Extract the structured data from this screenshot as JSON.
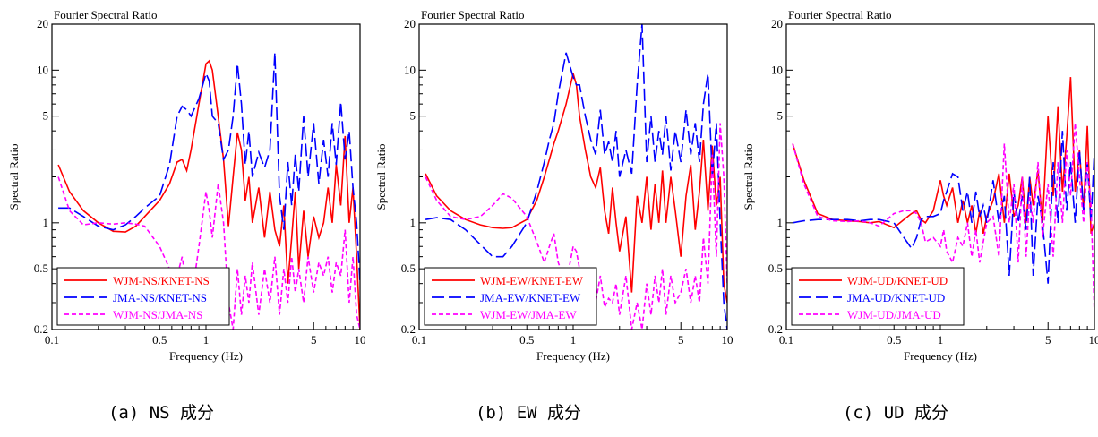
{
  "chart_data": [
    {
      "type": "line",
      "title": "Fourier Spectral Ratio",
      "xlabel": "Frequency (Hz)",
      "ylabel": "Spectral Ratio",
      "xscale": "log",
      "yscale": "log",
      "xlim": [
        0.1,
        10
      ],
      "ylim": [
        0.2,
        20
      ],
      "xticks": [
        "0.1",
        "0.5",
        "1",
        "5",
        "10"
      ],
      "yticks": [
        "0.2",
        "0.5",
        "1",
        "5",
        "10",
        "20"
      ],
      "legend": "bottom-left",
      "caption": "(a) NS 成分",
      "series": [
        {
          "name": "WJM-NS/KNET-NS",
          "color": "#ff0000",
          "dash": "solid",
          "x": [
            0.11,
            0.13,
            0.16,
            0.2,
            0.25,
            0.3,
            0.35,
            0.4,
            0.5,
            0.58,
            0.65,
            0.7,
            0.75,
            0.8,
            0.9,
            1.0,
            1.05,
            1.1,
            1.2,
            1.3,
            1.4,
            1.5,
            1.6,
            1.7,
            1.8,
            1.9,
            2.0,
            2.2,
            2.4,
            2.6,
            2.8,
            3.0,
            3.2,
            3.4,
            3.6,
            3.8,
            4.0,
            4.3,
            4.6,
            5.0,
            5.4,
            5.8,
            6.2,
            6.6,
            7.0,
            7.5,
            8.0,
            8.5,
            9.0,
            9.5,
            10.0
          ],
          "y": [
            2.4,
            1.6,
            1.2,
            1.0,
            0.88,
            0.87,
            0.95,
            1.1,
            1.4,
            1.8,
            2.5,
            2.6,
            2.2,
            3.0,
            6.0,
            11.0,
            11.5,
            10.0,
            5.0,
            2.6,
            0.95,
            2.0,
            3.9,
            3.0,
            1.4,
            2.0,
            1.0,
            1.7,
            0.8,
            1.6,
            0.9,
            0.7,
            1.3,
            0.4,
            0.8,
            1.6,
            0.5,
            1.2,
            0.6,
            1.1,
            0.8,
            1.0,
            1.7,
            1.0,
            2.4,
            1.3,
            3.7,
            1.0,
            1.7,
            0.6,
            0.2
          ]
        },
        {
          "name": "JMA-NS/KNET-NS",
          "color": "#0000ff",
          "dash": "long",
          "x": [
            0.11,
            0.13,
            0.16,
            0.2,
            0.25,
            0.3,
            0.35,
            0.4,
            0.5,
            0.58,
            0.65,
            0.7,
            0.75,
            0.8,
            0.9,
            1.0,
            1.05,
            1.1,
            1.2,
            1.3,
            1.4,
            1.5,
            1.6,
            1.7,
            1.8,
            1.9,
            2.0,
            2.2,
            2.4,
            2.6,
            2.8,
            3.0,
            3.2,
            3.4,
            3.6,
            3.8,
            4.0,
            4.3,
            4.6,
            5.0,
            5.4,
            5.8,
            6.2,
            6.6,
            7.0,
            7.5,
            8.0,
            8.5,
            9.0,
            9.5,
            10.0
          ],
          "y": [
            1.25,
            1.25,
            1.1,
            0.95,
            0.9,
            0.97,
            1.1,
            1.25,
            1.5,
            2.4,
            5.0,
            5.8,
            5.5,
            5.0,
            6.5,
            9.5,
            8.5,
            5.0,
            4.5,
            2.6,
            3.0,
            5.0,
            11.0,
            6.0,
            2.4,
            4.0,
            2.0,
            2.9,
            2.3,
            3.0,
            13.0,
            1.5,
            0.9,
            2.5,
            1.3,
            2.8,
            1.6,
            5.0,
            2.0,
            4.5,
            1.8,
            3.5,
            2.0,
            4.5,
            2.4,
            6.2,
            2.6,
            4.0,
            1.7,
            1.0,
            0.4
          ]
        },
        {
          "name": "WJM-NS/JMA-NS",
          "color": "#ff00ff",
          "dash": "short",
          "x": [
            0.11,
            0.13,
            0.16,
            0.2,
            0.25,
            0.3,
            0.35,
            0.4,
            0.5,
            0.58,
            0.65,
            0.7,
            0.75,
            0.8,
            0.9,
            1.0,
            1.05,
            1.1,
            1.2,
            1.3,
            1.4,
            1.5,
            1.6,
            1.7,
            1.8,
            1.9,
            2.0,
            2.2,
            2.4,
            2.6,
            2.8,
            3.0,
            3.2,
            3.4,
            3.6,
            3.8,
            4.0,
            4.3,
            4.6,
            5.0,
            5.4,
            5.8,
            6.2,
            6.6,
            7.0,
            7.5,
            8.0,
            8.5,
            9.0,
            9.5,
            10.0
          ],
          "y": [
            2.0,
            1.2,
            0.97,
            1.0,
            0.98,
            1.0,
            0.98,
            0.95,
            0.7,
            0.5,
            0.45,
            0.6,
            0.38,
            0.3,
            0.7,
            1.6,
            1.2,
            0.8,
            1.8,
            1.0,
            0.3,
            0.2,
            0.5,
            0.25,
            0.45,
            0.3,
            0.55,
            0.25,
            0.5,
            0.3,
            0.6,
            0.25,
            0.5,
            0.3,
            0.6,
            0.35,
            0.5,
            0.3,
            0.6,
            0.35,
            0.55,
            0.45,
            0.6,
            0.35,
            0.55,
            0.45,
            0.9,
            0.3,
            0.6,
            0.25,
            0.2
          ]
        }
      ]
    },
    {
      "type": "line",
      "title": "Fourier Spectral Ratio",
      "xlabel": "Frequency (Hz)",
      "ylabel": "Spectral Ratio",
      "xscale": "log",
      "yscale": "log",
      "xlim": [
        0.1,
        10
      ],
      "ylim": [
        0.2,
        20
      ],
      "xticks": [
        "0.1",
        "0.5",
        "1",
        "5",
        "10"
      ],
      "yticks": [
        "0.2",
        "0.5",
        "1",
        "5",
        "10",
        "20"
      ],
      "legend": "bottom-left",
      "caption": "(b) EW 成分",
      "series": [
        {
          "name": "WJM-EW/KNET-EW",
          "color": "#ff0000",
          "dash": "solid",
          "x": [
            0.11,
            0.13,
            0.16,
            0.2,
            0.25,
            0.3,
            0.35,
            0.4,
            0.5,
            0.58,
            0.65,
            0.7,
            0.75,
            0.8,
            0.9,
            1.0,
            1.05,
            1.1,
            1.2,
            1.3,
            1.4,
            1.5,
            1.6,
            1.7,
            1.8,
            1.9,
            2.0,
            2.2,
            2.4,
            2.6,
            2.8,
            3.0,
            3.2,
            3.4,
            3.6,
            3.8,
            4.0,
            4.3,
            4.6,
            5.0,
            5.4,
            5.8,
            6.2,
            6.6,
            7.0,
            7.5,
            8.0,
            8.5,
            9.0,
            9.5,
            10.0
          ],
          "y": [
            2.1,
            1.5,
            1.2,
            1.05,
            0.97,
            0.93,
            0.92,
            0.93,
            1.05,
            1.4,
            2.0,
            2.6,
            3.3,
            4.0,
            6.0,
            9.5,
            8.0,
            5.0,
            3.0,
            2.0,
            1.7,
            2.3,
            1.2,
            0.85,
            1.7,
            1.0,
            0.65,
            1.1,
            0.35,
            1.5,
            1.0,
            2.0,
            0.9,
            1.8,
            1.0,
            2.2,
            1.0,
            2.0,
            1.2,
            0.6,
            1.5,
            2.4,
            0.9,
            1.6,
            3.5,
            1.2,
            3.2,
            1.3,
            2.0,
            0.4,
            0.3
          ]
        },
        {
          "name": "JMA-EW/KNET-EW",
          "color": "#0000ff",
          "dash": "long",
          "x": [
            0.11,
            0.13,
            0.16,
            0.2,
            0.25,
            0.3,
            0.35,
            0.4,
            0.5,
            0.58,
            0.65,
            0.7,
            0.75,
            0.8,
            0.9,
            1.0,
            1.05,
            1.1,
            1.2,
            1.3,
            1.4,
            1.5,
            1.6,
            1.7,
            1.8,
            1.9,
            2.0,
            2.2,
            2.4,
            2.6,
            2.8,
            3.0,
            3.2,
            3.4,
            3.6,
            3.8,
            4.0,
            4.3,
            4.6,
            5.0,
            5.4,
            5.8,
            6.2,
            6.6,
            7.0,
            7.5,
            8.0,
            8.5,
            9.0,
            9.5,
            10.0
          ],
          "y": [
            1.05,
            1.08,
            1.05,
            0.9,
            0.72,
            0.6,
            0.6,
            0.7,
            1.0,
            1.6,
            2.5,
            3.5,
            4.5,
            7.0,
            13.0,
            9.0,
            8.0,
            8.0,
            5.0,
            3.5,
            2.8,
            5.5,
            2.8,
            3.4,
            2.5,
            4.0,
            2.0,
            3.0,
            2.1,
            8.0,
            20.0,
            2.5,
            5.0,
            2.5,
            4.0,
            2.8,
            5.0,
            2.2,
            4.0,
            2.5,
            5.5,
            2.8,
            4.5,
            2.5,
            6.0,
            9.5,
            2.0,
            4.5,
            1.0,
            0.3,
            0.2
          ]
        },
        {
          "name": "WJM-EW/JMA-EW",
          "color": "#ff00ff",
          "dash": "short",
          "x": [
            0.11,
            0.13,
            0.16,
            0.2,
            0.25,
            0.3,
            0.35,
            0.4,
            0.5,
            0.58,
            0.65,
            0.7,
            0.75,
            0.8,
            0.9,
            1.0,
            1.05,
            1.1,
            1.2,
            1.3,
            1.4,
            1.5,
            1.6,
            1.7,
            1.8,
            1.9,
            2.0,
            2.2,
            2.4,
            2.6,
            2.8,
            3.0,
            3.2,
            3.4,
            3.6,
            3.8,
            4.0,
            4.3,
            4.6,
            5.0,
            5.4,
            5.8,
            6.2,
            6.6,
            7.0,
            7.5,
            8.0,
            8.5,
            9.0,
            9.5,
            10.0
          ],
          "y": [
            2.0,
            1.4,
            1.1,
            1.05,
            1.1,
            1.3,
            1.55,
            1.45,
            1.1,
            0.75,
            0.55,
            0.7,
            0.85,
            0.55,
            0.4,
            0.7,
            0.65,
            0.5,
            0.3,
            0.28,
            0.3,
            0.45,
            0.28,
            0.32,
            0.3,
            0.4,
            0.25,
            0.45,
            0.2,
            0.3,
            0.2,
            0.4,
            0.25,
            0.45,
            0.3,
            0.5,
            0.25,
            0.45,
            0.3,
            0.35,
            0.5,
            0.3,
            0.45,
            0.3,
            0.8,
            0.4,
            2.8,
            0.6,
            4.5,
            2.0,
            0.4
          ]
        }
      ]
    },
    {
      "type": "line",
      "title": "Fourier Spectral Ratio",
      "xlabel": "Frequency (Hz)",
      "ylabel": "Spectral Ratio",
      "xscale": "log",
      "yscale": "log",
      "xlim": [
        0.1,
        10
      ],
      "ylim": [
        0.2,
        20
      ],
      "xticks": [
        "0.1",
        "0.5",
        "1",
        "5",
        "10"
      ],
      "yticks": [
        "0.2",
        "0.5",
        "1",
        "5",
        "10",
        "20"
      ],
      "legend": "bottom-left",
      "caption": "(c) UD 成分",
      "series": [
        {
          "name": "WJM-UD/KNET-UD",
          "color": "#ff0000",
          "dash": "solid",
          "x": [
            0.11,
            0.13,
            0.16,
            0.2,
            0.25,
            0.3,
            0.35,
            0.4,
            0.5,
            0.58,
            0.65,
            0.7,
            0.75,
            0.8,
            0.9,
            1.0,
            1.05,
            1.1,
            1.2,
            1.3,
            1.4,
            1.5,
            1.6,
            1.7,
            1.8,
            1.9,
            2.0,
            2.2,
            2.4,
            2.6,
            2.8,
            3.0,
            3.2,
            3.4,
            3.6,
            3.8,
            4.0,
            4.3,
            4.6,
            5.0,
            5.4,
            5.8,
            6.2,
            6.6,
            7.0,
            7.5,
            8.0,
            8.5,
            9.0,
            9.5,
            10.0
          ],
          "y": [
            3.3,
            1.9,
            1.15,
            1.05,
            1.03,
            1.02,
            1.0,
            1.02,
            0.93,
            1.05,
            1.15,
            1.2,
            1.05,
            1.0,
            1.2,
            1.9,
            1.5,
            1.3,
            1.7,
            1.0,
            1.4,
            1.0,
            1.3,
            0.85,
            1.2,
            0.85,
            1.1,
            1.4,
            2.1,
            1.0,
            2.1,
            1.1,
            1.3,
            2.0,
            1.0,
            2.0,
            1.3,
            2.2,
            1.0,
            5.0,
            1.5,
            5.8,
            1.6,
            3.6,
            9.0,
            1.6,
            3.0,
            1.2,
            4.3,
            0.85,
            1.0
          ]
        },
        {
          "name": "JMA-UD/KNET-UD",
          "color": "#0000ff",
          "dash": "long",
          "x": [
            0.11,
            0.13,
            0.16,
            0.2,
            0.25,
            0.3,
            0.35,
            0.4,
            0.5,
            0.58,
            0.65,
            0.7,
            0.75,
            0.8,
            0.9,
            1.0,
            1.05,
            1.1,
            1.2,
            1.3,
            1.4,
            1.5,
            1.6,
            1.7,
            1.8,
            1.9,
            2.0,
            2.2,
            2.4,
            2.6,
            2.8,
            3.0,
            3.2,
            3.4,
            3.6,
            3.8,
            4.0,
            4.3,
            4.6,
            5.0,
            5.4,
            5.8,
            6.2,
            6.6,
            7.0,
            7.5,
            8.0,
            8.5,
            9.0,
            9.5,
            10.0
          ],
          "y": [
            1.0,
            1.03,
            1.05,
            1.05,
            1.05,
            1.03,
            1.05,
            1.05,
            1.0,
            0.8,
            0.68,
            0.8,
            1.05,
            1.1,
            1.1,
            1.15,
            1.4,
            1.6,
            2.1,
            2.0,
            1.2,
            1.6,
            1.0,
            1.6,
            1.1,
            1.3,
            1.0,
            1.9,
            1.0,
            1.5,
            0.45,
            1.6,
            1.0,
            1.5,
            0.9,
            2.0,
            0.45,
            1.5,
            1.0,
            0.4,
            2.5,
            1.0,
            4.0,
            1.2,
            2.5,
            1.0,
            3.0,
            1.2,
            2.5,
            1.0,
            3.0
          ]
        },
        {
          "name": "WJM-UD/JMA-UD",
          "color": "#ff00ff",
          "dash": "short",
          "x": [
            0.11,
            0.13,
            0.16,
            0.2,
            0.25,
            0.3,
            0.35,
            0.4,
            0.5,
            0.58,
            0.65,
            0.7,
            0.75,
            0.8,
            0.9,
            1.0,
            1.05,
            1.1,
            1.2,
            1.3,
            1.4,
            1.5,
            1.6,
            1.7,
            1.8,
            1.9,
            2.0,
            2.2,
            2.4,
            2.6,
            2.8,
            3.0,
            3.2,
            3.4,
            3.6,
            3.8,
            4.0,
            4.3,
            4.6,
            5.0,
            5.4,
            5.8,
            6.2,
            6.6,
            7.0,
            7.5,
            8.0,
            8.5,
            9.0,
            9.5,
            10.0
          ],
          "y": [
            3.3,
            1.8,
            1.1,
            1.03,
            1.02,
            1.03,
            1.0,
            0.95,
            1.15,
            1.2,
            1.2,
            1.15,
            1.0,
            0.75,
            0.8,
            0.7,
            0.9,
            0.65,
            0.55,
            0.8,
            0.7,
            1.0,
            0.6,
            0.9,
            0.55,
            0.75,
            1.0,
            1.1,
            0.6,
            3.3,
            1.0,
            1.8,
            0.55,
            2.0,
            0.6,
            1.5,
            1.0,
            2.5,
            0.8,
            1.8,
            0.6,
            2.5,
            1.0,
            3.0,
            1.5,
            4.5,
            2.0,
            1.0,
            2.5,
            1.3,
            0.25
          ]
        }
      ]
    }
  ]
}
